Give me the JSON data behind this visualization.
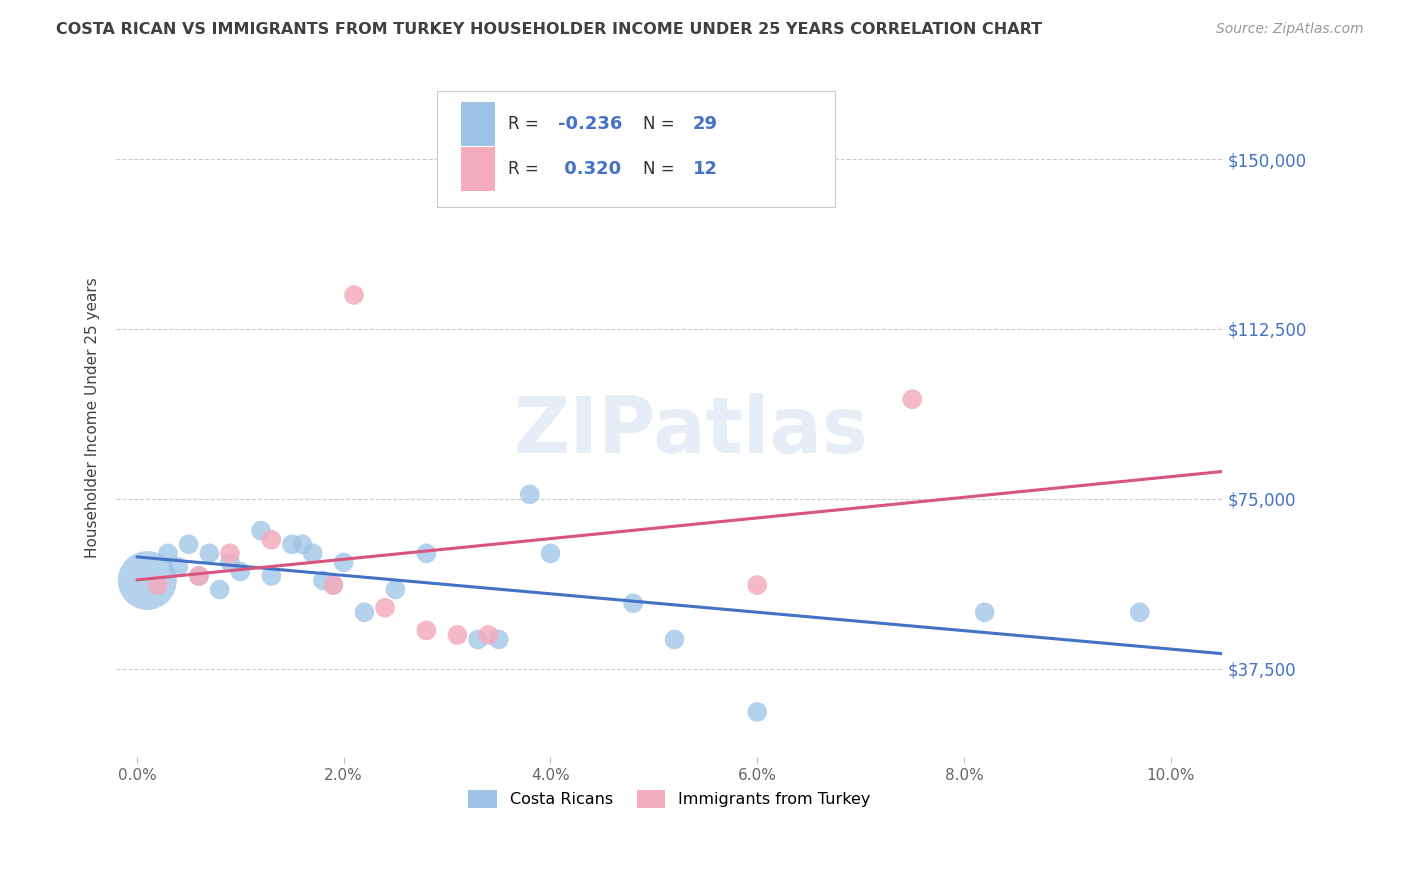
{
  "title": "COSTA RICAN VS IMMIGRANTS FROM TURKEY HOUSEHOLDER INCOME UNDER 25 YEARS CORRELATION CHART",
  "source": "Source: ZipAtlas.com",
  "ylabel": "Householder Income Under 25 years",
  "xlabel_ticks": [
    "0.0%",
    "2.0%",
    "4.0%",
    "6.0%",
    "8.0%",
    "10.0%"
  ],
  "xlabel_vals": [
    0.0,
    0.02,
    0.04,
    0.06,
    0.08,
    0.1
  ],
  "ylabel_ticks": [
    "$37,500",
    "$75,000",
    "$112,500",
    "$150,000"
  ],
  "ylabel_vals": [
    37500,
    75000,
    112500,
    150000
  ],
  "xlim": [
    -0.002,
    0.105
  ],
  "ylim": [
    18000,
    168000
  ],
  "watermark": "ZIPatlas",
  "legend1_r": "-0.236",
  "legend1_n": "29",
  "legend2_r": "0.320",
  "legend2_n": "12",
  "blue_color": "#9dc3e6",
  "pink_color": "#f4acbe",
  "blue_line_color": "#4472c4",
  "pink_line_color": "#d9547e",
  "title_color": "#404040",
  "axis_label_color": "#404040",
  "background_color": "#ffffff",
  "grid_color": "#c0c0c0",
  "legend_r_color": "#333333",
  "legend_val_color": "#4472c4",
  "costa_ricans_x": [
    0.001,
    0.003,
    0.004,
    0.005,
    0.006,
    0.007,
    0.008,
    0.009,
    0.01,
    0.012,
    0.013,
    0.015,
    0.016,
    0.017,
    0.018,
    0.019,
    0.02,
    0.022,
    0.025,
    0.028,
    0.033,
    0.035,
    0.038,
    0.04,
    0.048,
    0.052,
    0.06,
    0.082,
    0.097
  ],
  "costa_ricans_y": [
    57000,
    63000,
    60000,
    65000,
    58000,
    63000,
    55000,
    61000,
    59000,
    68000,
    58000,
    65000,
    65000,
    63000,
    57000,
    56000,
    61000,
    50000,
    55000,
    63000,
    44000,
    44000,
    76000,
    63000,
    52000,
    44000,
    28000,
    50000,
    50000
  ],
  "costa_ricans_size": [
    1800,
    200,
    200,
    200,
    200,
    200,
    200,
    200,
    200,
    200,
    200,
    200,
    200,
    200,
    200,
    200,
    200,
    200,
    200,
    200,
    200,
    200,
    200,
    200,
    200,
    200,
    200,
    200,
    200
  ],
  "turkey_x": [
    0.002,
    0.006,
    0.009,
    0.013,
    0.019,
    0.021,
    0.024,
    0.028,
    0.031,
    0.034,
    0.06,
    0.075
  ],
  "turkey_y": [
    56000,
    58000,
    63000,
    66000,
    56000,
    120000,
    51000,
    46000,
    45000,
    45000,
    56000,
    97000
  ],
  "turkey_size": [
    200,
    200,
    200,
    200,
    200,
    200,
    200,
    200,
    200,
    200,
    200,
    200
  ]
}
